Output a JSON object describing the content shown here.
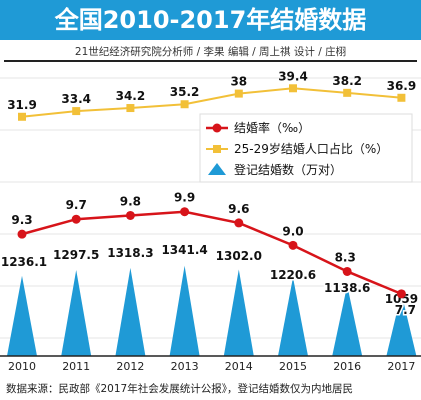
{
  "header": {
    "title": "全国2010-2017年结婚数据",
    "subtitle": "21世纪经济研究院分析师 / 李果   编辑 / 周上祺   设计 / 庄栩"
  },
  "footer": {
    "source": "数据来源：民政部《2017年社会发展统计公报》，登记结婚数仅为内地居民"
  },
  "colors": {
    "title_bg": "#1f9ad6",
    "marriage_rate": "#d7141a",
    "age_share": "#f2c038",
    "registrations": "#1f9ad6"
  },
  "chart_data": {
    "type": "line",
    "title": "全国2010-2017年结婚数据",
    "categories": [
      "2010",
      "2011",
      "2012",
      "2013",
      "2014",
      "2015",
      "2016",
      "2017"
    ],
    "legend_position": "right",
    "series": [
      {
        "name": "结婚率（‰）",
        "type": "line",
        "values": [
          9.3,
          9.7,
          9.8,
          9.9,
          9.6,
          9.0,
          8.3,
          7.7
        ]
      },
      {
        "name": "25-29岁结婚人口占比（%）",
        "type": "line",
        "values": [
          31.9,
          33.4,
          34.2,
          35.2,
          38,
          39.4,
          38.2,
          36.9
        ]
      },
      {
        "name": "登记结婚数（万对）",
        "type": "area",
        "values": [
          1236.1,
          1297.5,
          1318.3,
          1341.4,
          1302.0,
          1220.6,
          1138.6,
          1059
        ]
      }
    ],
    "value_labels": {
      "marriage_rate": [
        "9.3",
        "9.7",
        "9.8",
        "9.9",
        "9.6",
        "9.0",
        "8.3",
        "7.7"
      ],
      "age_share": [
        "31.9",
        "33.4",
        "34.2",
        "35.2",
        "38",
        "39.4",
        "38.2",
        "36.9"
      ],
      "registrations": [
        "1236.1",
        "1297.5",
        "1318.3",
        "1341.4",
        "1302.0",
        "1220.6",
        "1138.6",
        "1059"
      ]
    }
  }
}
